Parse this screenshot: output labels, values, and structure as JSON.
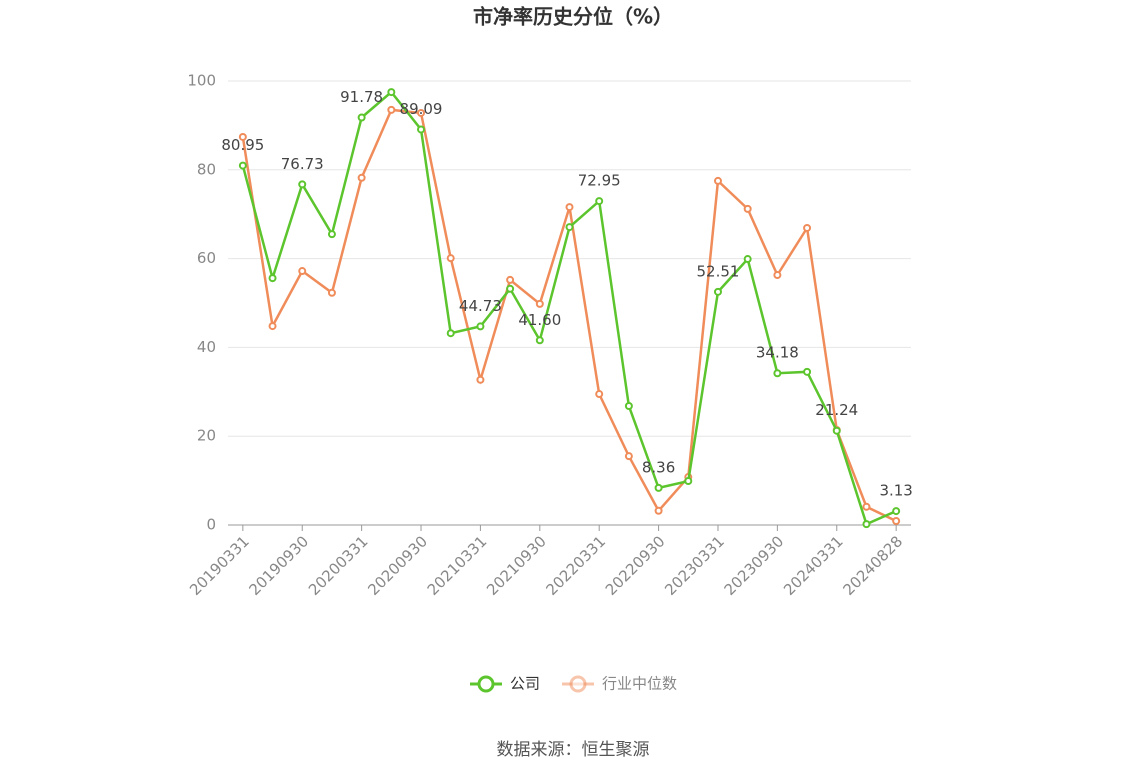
{
  "chart_data": {
    "type": "line",
    "title": "市净率历史分位（%）",
    "categories": [
      "20190331",
      null,
      "20190930",
      null,
      "20200331",
      null,
      "20200930",
      null,
      "20210331",
      null,
      "20210930",
      null,
      "20220331",
      null,
      "20220930",
      null,
      "20230331",
      null,
      "20230930",
      null,
      "20240331",
      null,
      "20240828"
    ],
    "series": [
      {
        "name": "公司",
        "color": "#5cc52d",
        "values": [
          80.95,
          55.6,
          76.73,
          65.5,
          91.78,
          97.5,
          89.09,
          43.2,
          44.73,
          53.2,
          41.6,
          67.1,
          72.95,
          26.8,
          8.36,
          9.9,
          52.51,
          59.9,
          34.18,
          34.5,
          21.24,
          0.2,
          3.13
        ],
        "value_labels": [
          "80.95",
          null,
          "76.73",
          null,
          "91.78",
          null,
          "89.09",
          null,
          "44.73",
          null,
          "41.60",
          null,
          "72.95",
          null,
          "8.36",
          null,
          "52.51",
          null,
          "34.18",
          null,
          "21.24",
          null,
          "3.13"
        ]
      },
      {
        "name": "行业中位数",
        "color": "#f08c5a",
        "values": [
          87.4,
          44.8,
          57.2,
          52.3,
          78.2,
          93.5,
          92.8,
          60.1,
          32.7,
          55.2,
          49.8,
          71.6,
          29.5,
          15.5,
          3.2,
          10.8,
          77.5,
          71.2,
          56.3,
          66.9,
          21.4,
          4.1,
          0.9
        ]
      }
    ],
    "ylim": [
      0,
      100
    ],
    "yticks": [
      0,
      20,
      40,
      60,
      80,
      100
    ],
    "grid": true,
    "legend": "bottom",
    "source": "数据来源：恒生聚源"
  }
}
